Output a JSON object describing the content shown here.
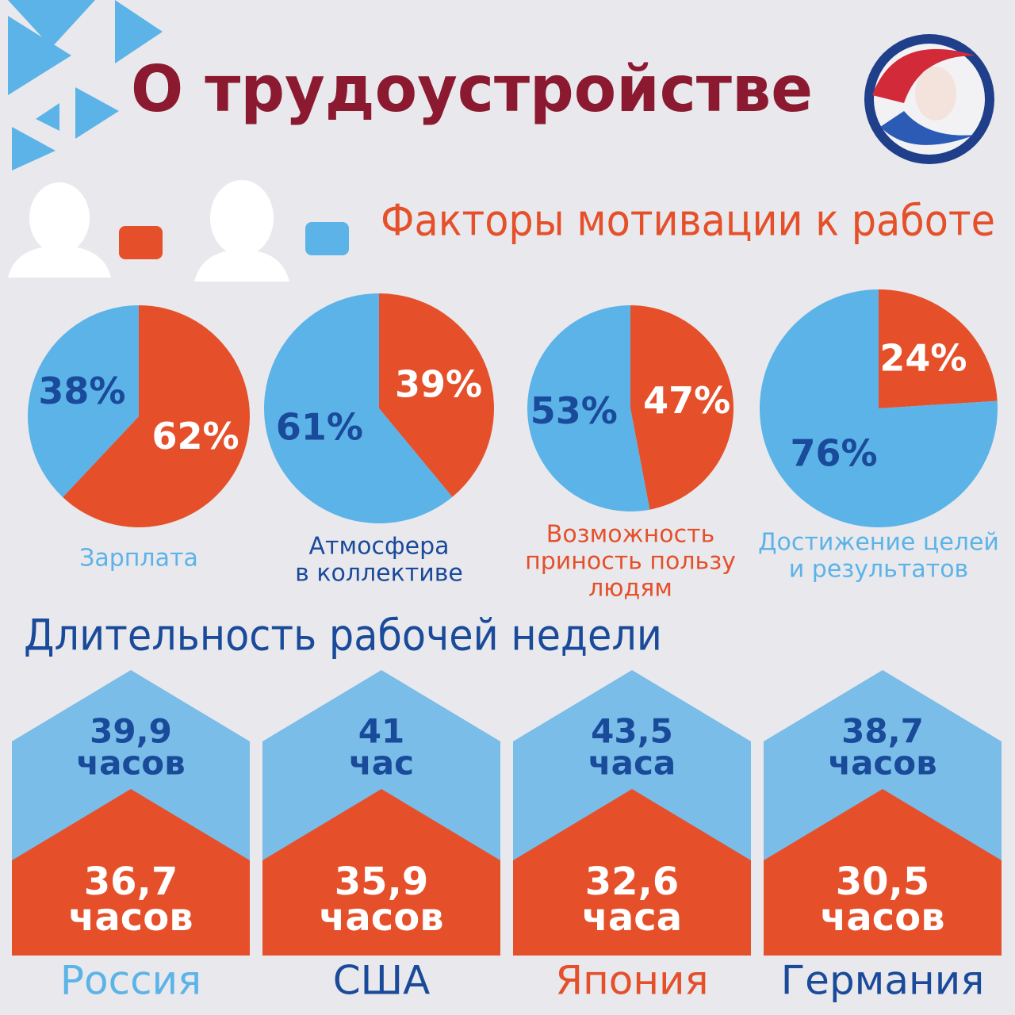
{
  "header": {
    "title": "О трудоустройстве",
    "subtitle": "Факторы мотивации к работе"
  },
  "chart_data": [
    {
      "type": "pie",
      "title": [
        "Зарплата"
      ],
      "title_color": "#5cb3e8",
      "categories": [
        null,
        null
      ],
      "values": [
        62,
        38
      ],
      "value_labels": [
        "62%",
        "38%"
      ],
      "colors": [
        "#e5502a",
        "#5cb3e8"
      ]
    },
    {
      "type": "pie",
      "title": [
        "Атмосфера",
        "в коллективе"
      ],
      "title_color": "#1a4a9a",
      "categories": [
        null,
        null
      ],
      "values": [
        39,
        61
      ],
      "value_labels": [
        "39%",
        "61%"
      ],
      "colors": [
        "#e5502a",
        "#5cb3e8"
      ]
    },
    {
      "type": "pie",
      "title": [
        "Возможность",
        "приность пользу",
        "людям"
      ],
      "title_color": "#e5502a",
      "categories": [
        null,
        null
      ],
      "values": [
        47,
        53
      ],
      "value_labels": [
        "47%",
        "53%"
      ],
      "colors": [
        "#e5502a",
        "#5cb3e8"
      ]
    },
    {
      "type": "pie",
      "title": [
        "Достижение целей",
        "и результатов"
      ],
      "title_color": "#5cb3e8",
      "categories": [
        null,
        null
      ],
      "values": [
        24,
        76
      ],
      "value_labels": [
        "24%",
        "76%"
      ],
      "colors": [
        "#e5502a",
        "#5cb3e8"
      ]
    }
  ],
  "work_week": {
    "title": "Длительность рабочей недели",
    "countries": [
      {
        "name": "Россия",
        "name_color": "#5cb3e8",
        "upper": [
          "39,9",
          "часов"
        ],
        "lower": [
          "36,7",
          "часов"
        ]
      },
      {
        "name": "США",
        "name_color": "#1a4a9a",
        "upper": [
          "41",
          "час"
        ],
        "lower": [
          "35,9",
          "часов"
        ]
      },
      {
        "name": "Япония",
        "name_color": "#e5502a",
        "upper": [
          "43,5",
          "часа"
        ],
        "lower": [
          "32,6",
          "часа"
        ]
      },
      {
        "name": "Германия",
        "name_color": "#1a4a9a",
        "upper": [
          "38,7",
          "часов"
        ],
        "lower": [
          "30,5",
          "часов"
        ]
      }
    ]
  }
}
